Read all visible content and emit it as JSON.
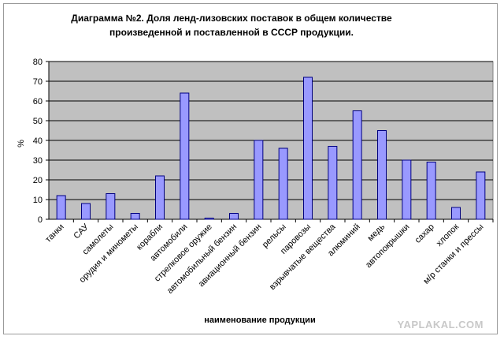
{
  "chart_data": {
    "type": "bar",
    "title": [
      "Диаграмма №2. Доля ленд-лизовских поставок в общем количестве",
      "произведенной и поставленной в СССР продукции."
    ],
    "xlabel": "наименование продукции",
    "ylabel": "%",
    "ylim": [
      0,
      80
    ],
    "yticks": [
      0,
      10,
      20,
      30,
      40,
      50,
      60,
      70,
      80
    ],
    "grid": true,
    "legend": "none",
    "categories": [
      "танки",
      "САУ",
      "самолеты",
      "орудия и минометы",
      "корабли",
      "автомобили",
      "стрелковое оружие",
      "автомобильный бензин",
      "авиационный бензин",
      "рельсы",
      "паровозы",
      "взрывчатые вещества",
      "алюминий",
      "медь",
      "автопокрышки",
      "сахар",
      "хлопок",
      "м/р станки и прессы"
    ],
    "values": [
      12,
      8,
      13,
      3,
      22,
      64,
      0.6,
      3,
      40,
      36,
      72,
      37,
      55,
      45,
      30,
      29,
      6,
      24
    ],
    "colors": {
      "bar_fill": "#9999ff",
      "bar_stroke": "#000080",
      "plot_bg": "#c0c0c0",
      "grid": "#000000"
    }
  },
  "watermark": "YAPLAKAL.COM"
}
